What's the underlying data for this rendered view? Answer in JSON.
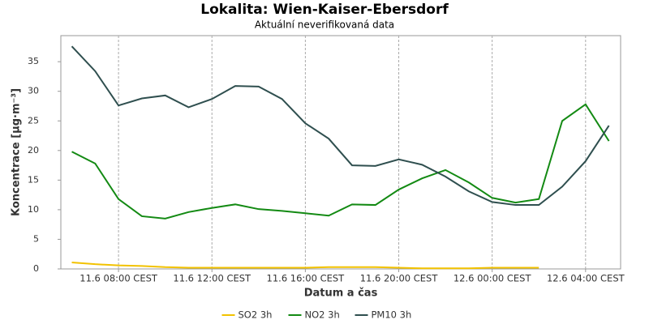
{
  "chart_data": {
    "type": "line",
    "title": "Lokalita: Wien-Kaiser-Ebersdorf",
    "subtitle": "Aktuální neverifikovaná data",
    "x_label": "Datum a čas",
    "y_label": "Koncentrace [µg·m⁻³]",
    "x": [
      6,
      7,
      8,
      9,
      10,
      11,
      12,
      13,
      14,
      15,
      16,
      17,
      18,
      19,
      20,
      21,
      22,
      23,
      24,
      25,
      26,
      27,
      28,
      29
    ],
    "series": [
      {
        "name": "SO2 3h",
        "color": "#f2c200",
        "values": [
          1.1,
          0.8,
          0.6,
          0.5,
          0.3,
          0.2,
          0.2,
          0.2,
          0.2,
          0.2,
          0.2,
          0.3,
          0.3,
          0.3,
          0.2,
          0.1,
          0.1,
          0.1,
          0.2,
          0.2,
          0.2,
          null,
          null,
          null
        ]
      },
      {
        "name": "NO2 3h",
        "color": "#138a13",
        "values": [
          19.8,
          17.8,
          11.8,
          8.9,
          8.5,
          9.6,
          10.3,
          10.9,
          10.1,
          9.8,
          9.4,
          9.0,
          10.9,
          10.8,
          13.4,
          15.3,
          16.7,
          14.6,
          12.0,
          11.2,
          11.8,
          25.0,
          27.8,
          21.6
        ]
      },
      {
        "name": "PM10 3h",
        "color": "#2f4f4f",
        "values": [
          37.6,
          33.4,
          27.6,
          28.8,
          29.3,
          27.3,
          28.7,
          30.9,
          30.8,
          28.7,
          24.6,
          22.0,
          17.5,
          17.4,
          18.5,
          17.6,
          15.6,
          13.1,
          11.3,
          10.8,
          10.8,
          13.9,
          18.2,
          24.2
        ]
      }
    ],
    "xlim": [
      5.53,
      29.5
    ],
    "xticks": [
      {
        "value": 8,
        "label": "11.6 08:00 CEST"
      },
      {
        "value": 12,
        "label": "11.6 12:00 CEST"
      },
      {
        "value": 16,
        "label": "11.6 16:00 CEST"
      },
      {
        "value": 20,
        "label": "11.6 20:00 CEST"
      },
      {
        "value": 24,
        "label": "12.6 00:00 CEST"
      },
      {
        "value": 28,
        "label": "12.6 04:00 CEST"
      }
    ],
    "ylim": [
      0,
      39.4
    ],
    "yticks": [
      0,
      5,
      10,
      15,
      20,
      25,
      30,
      35
    ],
    "grid": "x",
    "legend": "bottom"
  }
}
